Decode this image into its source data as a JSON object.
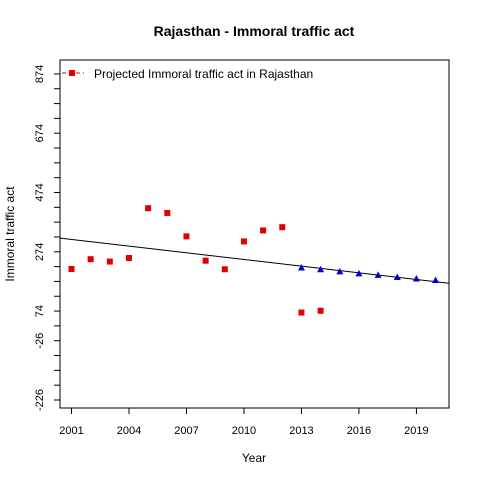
{
  "chart_data": {
    "type": "scatter",
    "title": "Rajasthan  -  Immoral traffic act",
    "xlabel": "Year",
    "ylabel": "Immoral traffic act",
    "xlim": [
      2000.4,
      2020.7
    ],
    "ylim": [
      -253,
      921
    ],
    "x_ticks": [
      2001,
      2004,
      2007,
      2010,
      2013,
      2016,
      2019
    ],
    "y_ticks": [
      -226,
      -26,
      74,
      274,
      474,
      674,
      874
    ],
    "grid": false,
    "legend": {
      "position": "top-left",
      "entries": [
        "Projected  Immoral traffic act  in  Rajasthan"
      ]
    },
    "series": [
      {
        "name": "Projected  Immoral traffic act  in  Rajasthan",
        "marker": "square",
        "color": "#e00000",
        "points": [
          [
            2001,
            216
          ],
          [
            2002,
            249
          ],
          [
            2003,
            241
          ],
          [
            2004,
            253
          ],
          [
            2005,
            421
          ],
          [
            2006,
            405
          ],
          [
            2007,
            326
          ],
          [
            2008,
            244
          ],
          [
            2009,
            215
          ],
          [
            2010,
            309
          ],
          [
            2011,
            346
          ],
          [
            2012,
            357
          ],
          [
            2013,
            69
          ],
          [
            2014,
            75
          ]
        ]
      },
      {
        "marker": "triangle",
        "color": "#0000cc",
        "points": [
          [
            2013,
            221
          ],
          [
            2014,
            215
          ],
          [
            2015,
            208
          ],
          [
            2016,
            201
          ],
          [
            2017,
            196
          ],
          [
            2018,
            189
          ],
          [
            2019,
            184
          ],
          [
            2020,
            179
          ]
        ]
      }
    ],
    "trend_line": {
      "color": "#000000",
      "points": [
        [
          2000.4,
          320
        ],
        [
          2020.7,
          168
        ]
      ]
    }
  }
}
